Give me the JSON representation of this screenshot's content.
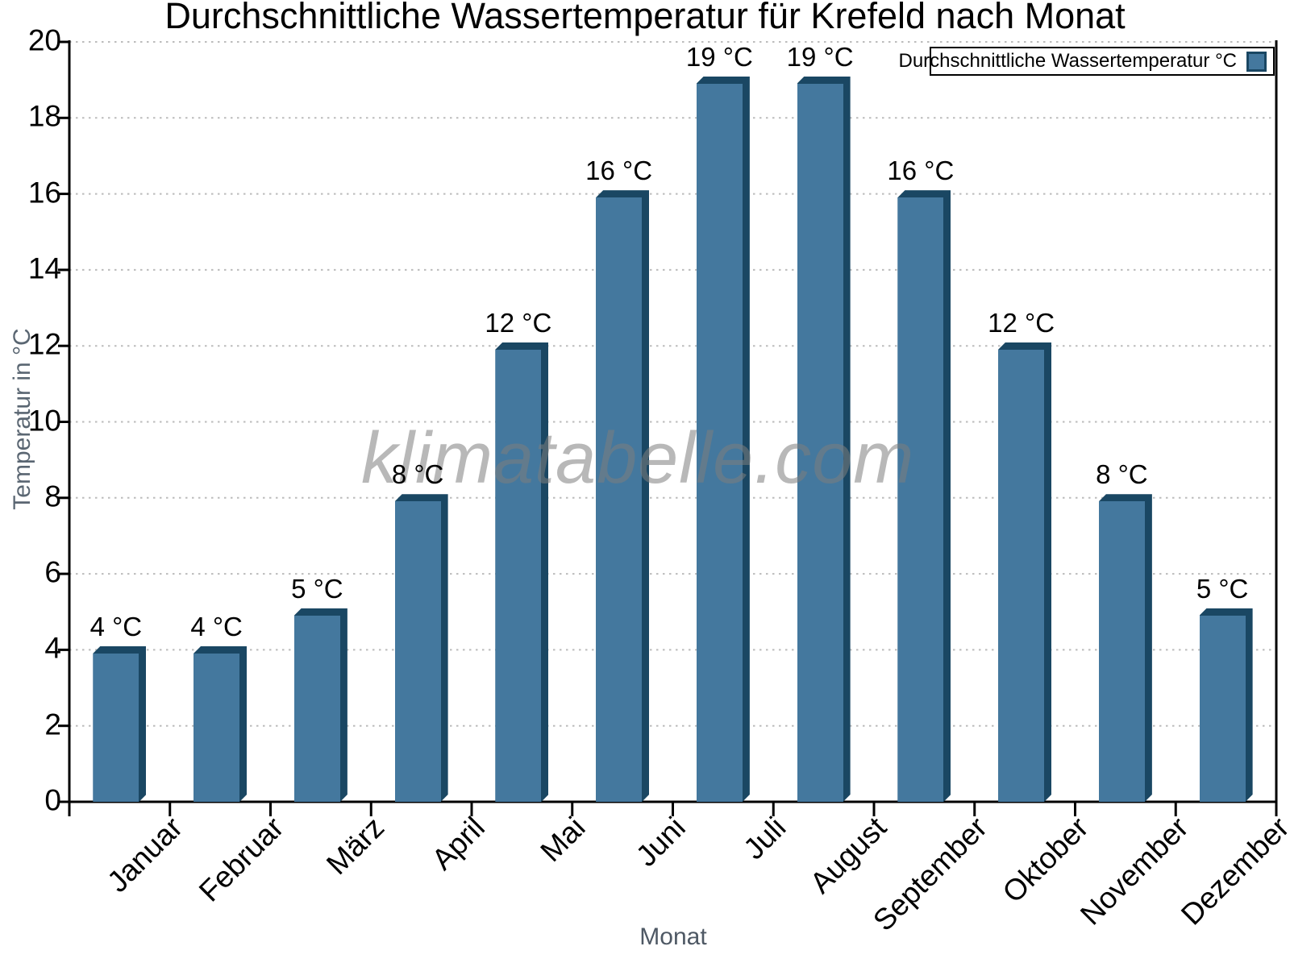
{
  "title": "Durchschnittliche Wassertemperatur für Krefeld nach Monat",
  "legend": {
    "label": "Durchschnittliche Wassertemperatur °C"
  },
  "watermark": "klimatabelle.com",
  "chart_data": {
    "type": "bar",
    "title": "Durchschnittliche Wassertemperatur für Krefeld nach Monat",
    "xlabel": "Monat",
    "ylabel": "Temperatur in °C",
    "categories": [
      "Januar",
      "Februar",
      "März",
      "April",
      "Mai",
      "Juni",
      "Juli",
      "August",
      "September",
      "Oktober",
      "November",
      "Dezember"
    ],
    "values": [
      4,
      4,
      5,
      8,
      12,
      16,
      19,
      19,
      16,
      12,
      8,
      5
    ],
    "value_label_suffix": " °C",
    "value_labels": [
      "4 °C",
      "4 °C",
      "5 °C",
      "8 °C",
      "12 °C",
      "16 °C",
      "19 °C",
      "19 °C",
      "16 °C",
      "12 °C",
      "8 °C",
      "5 °C"
    ],
    "ylim": [
      0,
      20
    ],
    "ytick_step": 2,
    "grid": "horizontal dotted at every 2 °C",
    "legend_position": "top-right",
    "series_name": "Durchschnittliche Wassertemperatur °C",
    "bar_style": "3d-extruded"
  },
  "colors": {
    "bar_front": "#44789E",
    "bar_edge": "#1A4763",
    "grid": "#BBBBBB",
    "axis": "#000000",
    "axis_title_gray": "#5A6672",
    "watermark_gray": "#7D7D7D"
  }
}
